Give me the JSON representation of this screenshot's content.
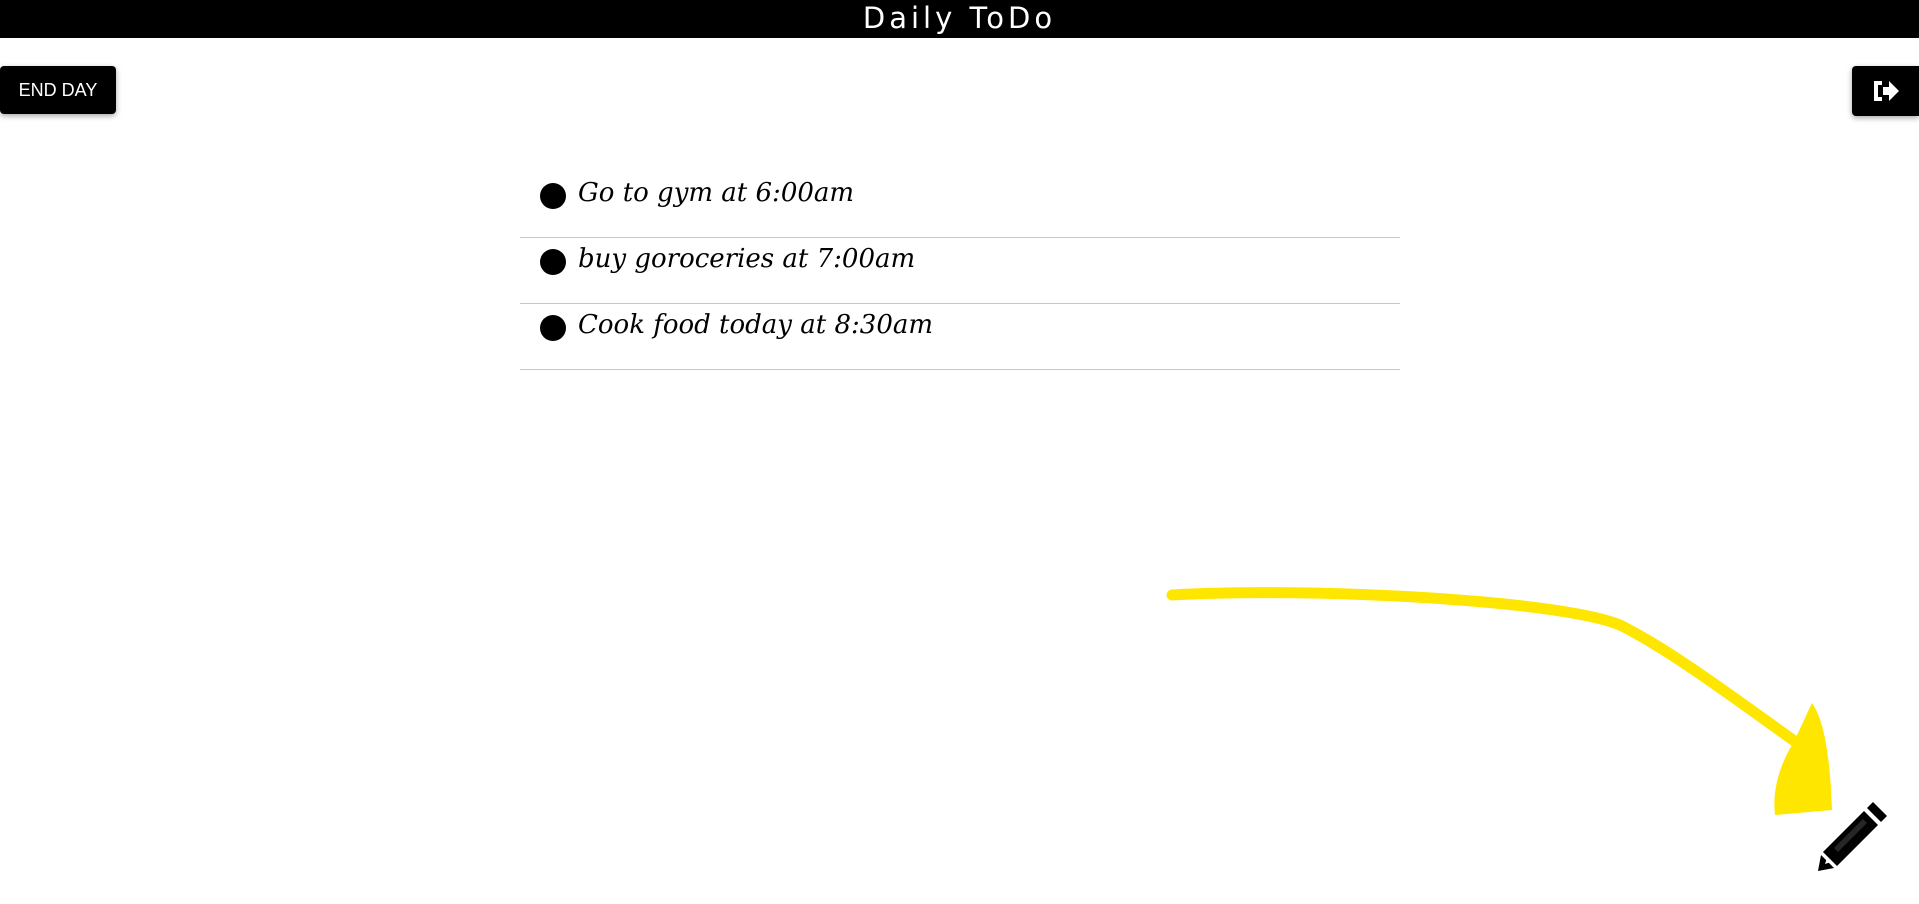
{
  "header": {
    "title": "Daily ToDo"
  },
  "toolbar": {
    "end_day_label": "END DAY",
    "logout_icon": "sign-out-icon"
  },
  "todos": [
    {
      "text": "Go to gym at 6:00am"
    },
    {
      "text": "buy goroceries at 7:00am"
    },
    {
      "text": "Cook food today at 8:30am"
    }
  ],
  "fab": {
    "icon": "pencil-icon"
  },
  "colors": {
    "bar": "#000000",
    "background": "#ffffff",
    "annotation": "#ffe600",
    "divider": "#c8c8c8"
  }
}
